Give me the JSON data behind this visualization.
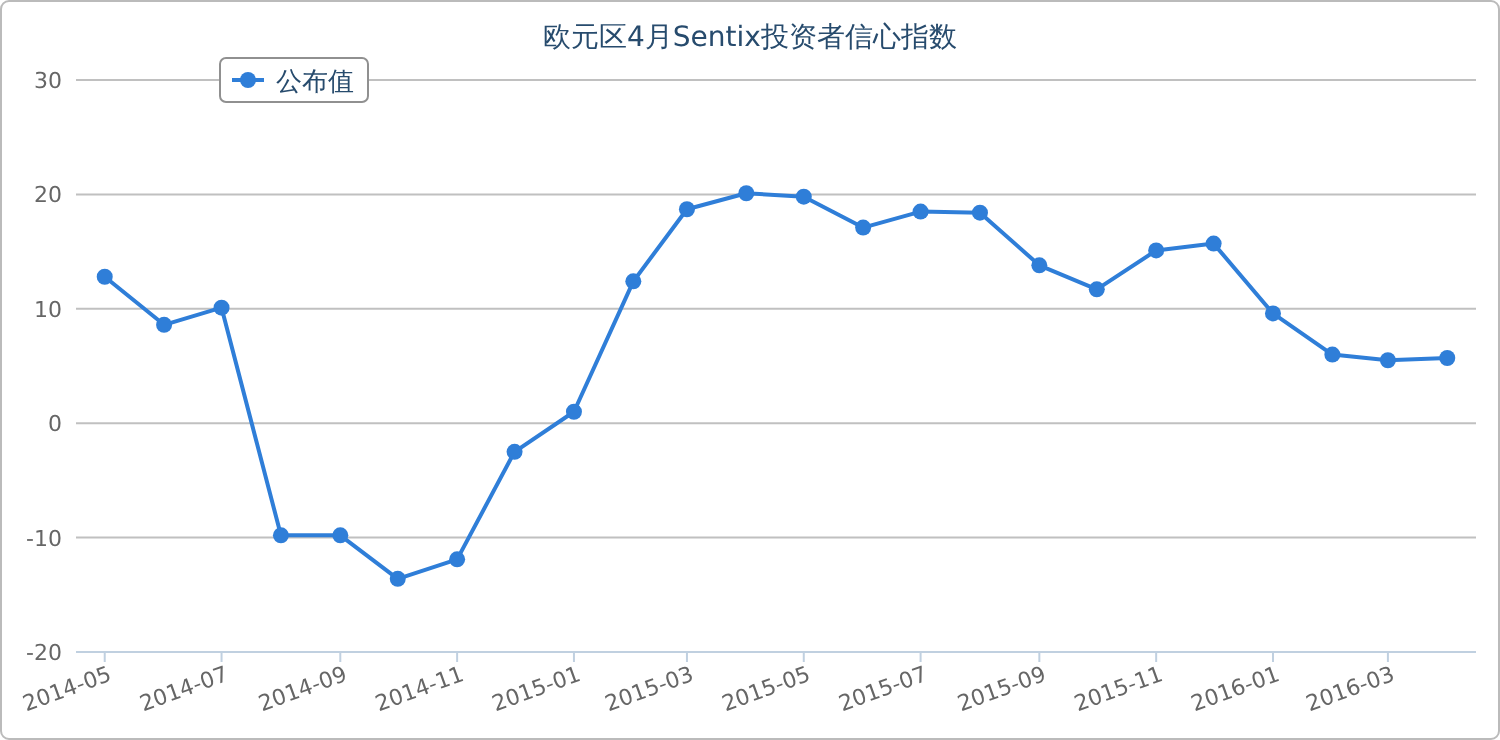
{
  "chart_data": {
    "type": "line",
    "title": "欧元区4月Sentix投资者信心指数",
    "x": [
      "2014-05",
      "2014-06",
      "2014-07",
      "2014-08",
      "2014-09",
      "2014-10",
      "2014-11",
      "2014-12",
      "2015-01",
      "2015-02",
      "2015-03",
      "2015-04",
      "2015-05",
      "2015-06",
      "2015-07",
      "2015-08",
      "2015-09",
      "2015-10",
      "2015-11",
      "2015-12",
      "2016-01",
      "2016-02",
      "2016-03",
      "2016-04"
    ],
    "series": [
      {
        "name": "公布值",
        "color": "#2f7ed8",
        "values": [
          12.8,
          8.6,
          10.1,
          -9.8,
          -9.8,
          -13.6,
          -11.9,
          -2.5,
          1.0,
          12.4,
          18.7,
          20.1,
          19.8,
          17.1,
          18.5,
          18.4,
          13.8,
          11.7,
          15.1,
          15.7,
          9.6,
          6.0,
          5.5,
          5.7
        ]
      }
    ],
    "xlim": [
      "2014-04-16",
      "2016-04-16"
    ],
    "xticks": [
      "2014-05",
      "2014-07",
      "2014-09",
      "2014-11",
      "2015-01",
      "2015-03",
      "2015-05",
      "2015-07",
      "2015-09",
      "2015-11",
      "2016-01",
      "2016-03"
    ],
    "ylim": [
      -20,
      30
    ],
    "yticks": [
      -20,
      -10,
      0,
      10,
      20,
      30
    ],
    "grid": "y",
    "legend": "top left",
    "marker": "circle",
    "line_style": "solid"
  }
}
